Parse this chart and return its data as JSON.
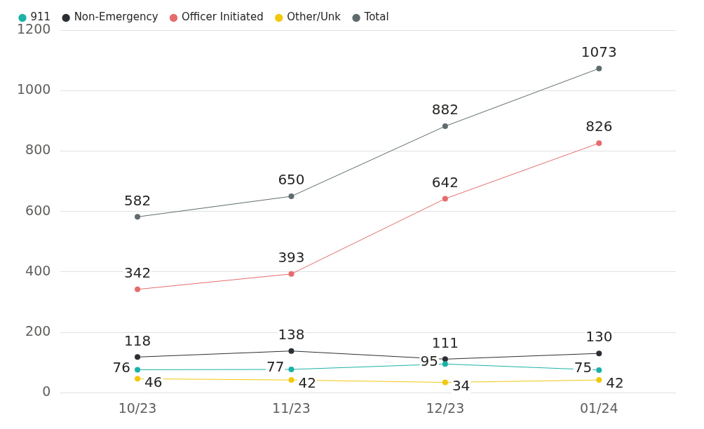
{
  "chart_data": {
    "type": "line",
    "categories": [
      "10/23",
      "11/23",
      "12/23",
      "01/24"
    ],
    "series": [
      {
        "name": "911",
        "color": "#1ab2a8",
        "values": [
          76,
          77,
          95,
          75
        ]
      },
      {
        "name": "Non-Emergency",
        "color": "#2b2f33",
        "values": [
          118,
          138,
          111,
          130
        ]
      },
      {
        "name": "Officer Initiated",
        "color": "#e66c6c",
        "values": [
          342,
          393,
          642,
          826
        ]
      },
      {
        "name": "Other/Unk",
        "color": "#f2c80f",
        "values": [
          46,
          42,
          34,
          42
        ]
      },
      {
        "name": "Total",
        "color": "#5f6b6d",
        "values": [
          582,
          650,
          882,
          1073
        ]
      }
    ],
    "ylim": [
      0,
      1200
    ],
    "yticks": [
      0,
      200,
      400,
      600,
      800,
      1000,
      1200
    ],
    "grid": "y",
    "legend": "top left",
    "marker": "circle",
    "data_labels": true
  }
}
